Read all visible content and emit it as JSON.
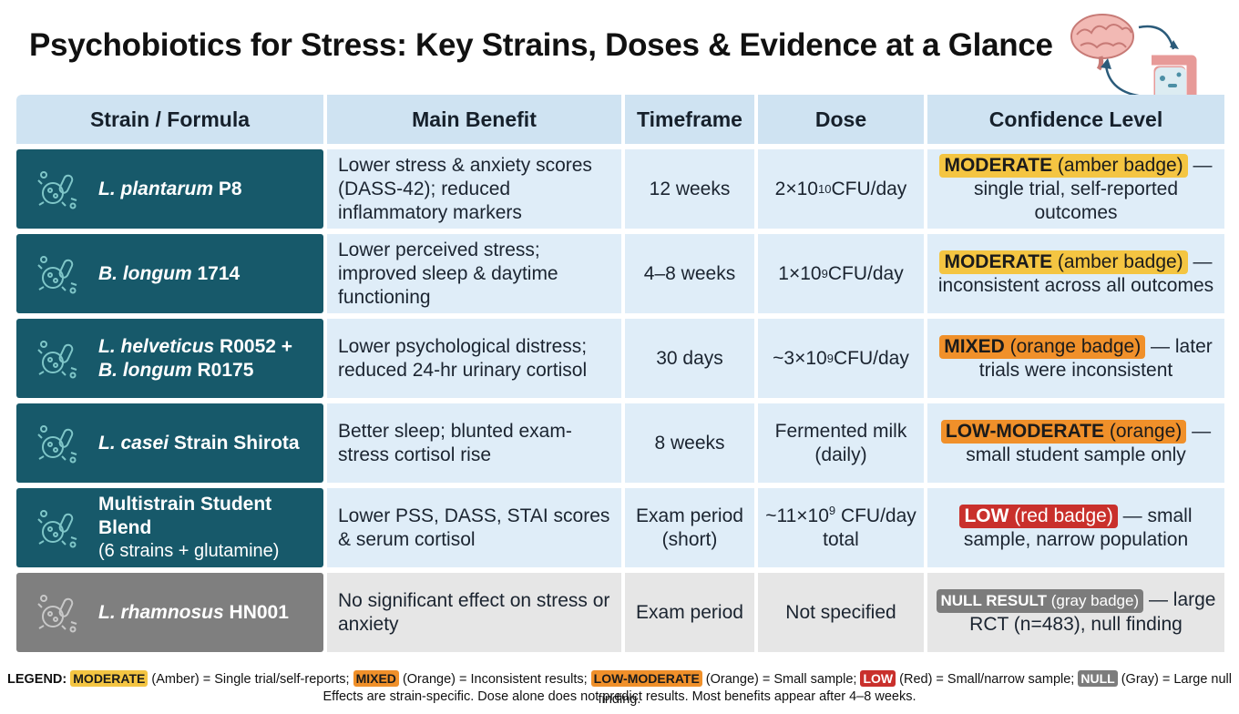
{
  "title": "Psychobiotics for Stress: Key Strains, Doses & Evidence at a Glance",
  "colors": {
    "header": "#cfe3f2",
    "strain_bg": "#17596a",
    "row_bg": "#dfedf8",
    "null_bg": "#7f7f7f",
    "amber": "#f4c542",
    "orange": "#f0902a",
    "red": "#c9302c",
    "gray": "#7c7c7c"
  },
  "icons": {
    "header_art": "brain-gut-axis-icon",
    "row_icon": "bacteria-icon"
  },
  "headers": [
    "Strain / Formula",
    "Main Benefit",
    "Timeframe",
    "Dose",
    "Confidence Level"
  ],
  "rows": [
    {
      "strain_italic": "L. plantarum",
      "strain_rest": " P8",
      "strain_line2": "",
      "benefit": "Lower stress & anxiety scores (DASS-42); reduced inflammatory markers",
      "timeframe": "12 weeks",
      "dose_base": "2×10",
      "dose_exp": "10",
      "dose_unit": " CFU/day",
      "badge": "MODERATE",
      "badge_note": " (amber badge)",
      "conf_text": " — single trial, self-reported outcomes"
    },
    {
      "strain_italic": "B. longum",
      "strain_rest": " 1714",
      "strain_line2": "",
      "benefit": "Lower perceived stress; improved sleep & daytime functioning",
      "timeframe": "4–8 weeks",
      "dose_base": "1×10",
      "dose_exp": "9",
      "dose_unit": " CFU/day",
      "badge": "MODERATE",
      "badge_note": " (amber badge)",
      "conf_text": " — inconsistent across all outcomes"
    },
    {
      "strain_italic": "L. helveticus",
      "strain_rest": " R0052 +",
      "strain_line2_italic": "B. longum",
      "strain_line2_rest": " R0175",
      "benefit": "Lower psychological distress; reduced 24-hr urinary cortisol",
      "timeframe": "30 days",
      "dose_base": "~3×10",
      "dose_exp": "9",
      "dose_unit": " CFU/day",
      "badge": "MIXED",
      "badge_note": " (orange badge)",
      "conf_text": " — later trials were inconsistent"
    },
    {
      "strain_italic": "L. casei",
      "strain_rest": " Strain Shirota",
      "strain_line2": "",
      "benefit": "Better sleep; blunted exam-stress cortisol rise",
      "timeframe": "8 weeks",
      "dose_text": "Fermented milk (daily)",
      "badge": "LOW-MODERATE",
      "badge_note": " (orange)",
      "conf_text": " — small student sample only"
    },
    {
      "strain_bold": "Multistrain Student Blend",
      "strain_sub": "(6 strains + glutamine)",
      "benefit": "Lower PSS, DASS, STAI scores & serum cortisol",
      "timeframe": "Exam period (short)",
      "dose_base": "~11×10",
      "dose_exp": "9",
      "dose_unit": " CFU/day",
      "dose_line2": "total",
      "badge": "LOW",
      "badge_note": " (red badge)",
      "conf_text": " — small sample, narrow population"
    },
    {
      "strain_italic": "L. rhamnosus",
      "strain_rest": " HN001",
      "strain_line2": "",
      "benefit": "No significant effect on stress or anxiety",
      "timeframe": "Exam period",
      "dose_text": "Not specified",
      "badge": "NULL RESULT",
      "badge_note": " (gray badge)",
      "conf_text": " — large RCT (n=483), null finding"
    }
  ],
  "legend": {
    "label": "LEGEND:",
    "items": [
      {
        "badge": "MODERATE",
        "text": " (Amber) = Single trial/self-reports;"
      },
      {
        "badge": "MIXED",
        "text": " (Orange) = Inconsistent results;"
      },
      {
        "badge": "LOW-MODERATE",
        "text": " (Orange) = Small sample;"
      },
      {
        "badge": "LOW",
        "text": " (Red) = Small/narrow sample;"
      },
      {
        "badge": "NULL",
        "text": " (Gray) = Large null finding."
      }
    ],
    "footnote": "Effects are strain-specific. Dose alone does not predict results. Most benefits appear after 4–8 weeks."
  }
}
